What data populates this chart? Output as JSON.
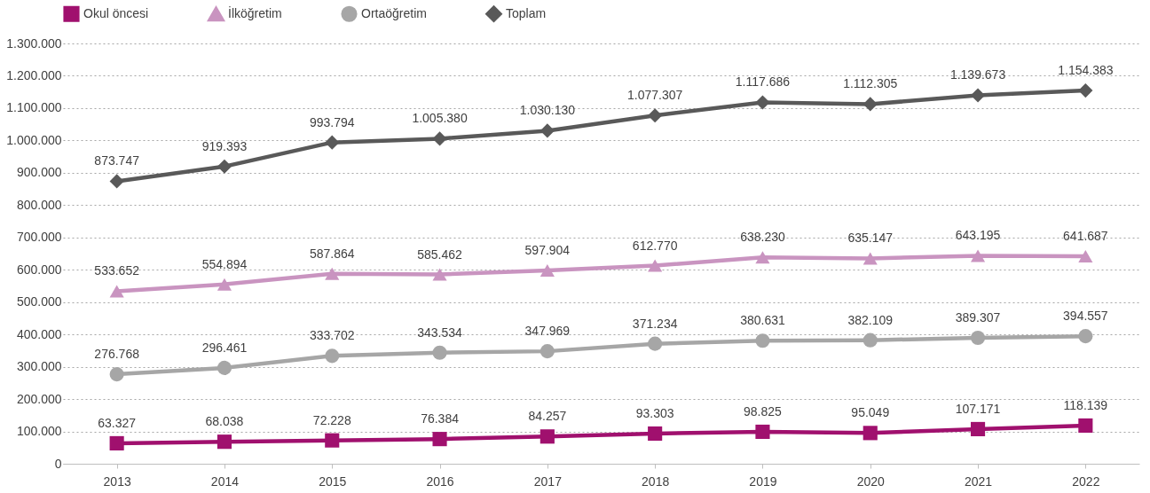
{
  "chart_data": {
    "type": "line",
    "categories": [
      "2013",
      "2014",
      "2015",
      "2016",
      "2017",
      "2018",
      "2019",
      "2020",
      "2021",
      "2022"
    ],
    "series": [
      {
        "name": "Okul öncesi",
        "color": "#a0106e",
        "marker": "square",
        "values": [
          63327,
          68038,
          72228,
          76384,
          84257,
          93303,
          98825,
          95049,
          107171,
          118139
        ],
        "value_labels": [
          "63.327",
          "68.038",
          "72.228",
          "76.384",
          "84.257",
          "93.303",
          "98.825",
          "95.049",
          "107.171",
          "118.139"
        ]
      },
      {
        "name": "İlköğretim",
        "color": "#c994c0",
        "marker": "triangle",
        "values": [
          533652,
          554894,
          587864,
          585462,
          597904,
          612770,
          638230,
          635147,
          643195,
          641687
        ],
        "value_labels": [
          "533.652",
          "554.894",
          "587.864",
          "585.462",
          "597.904",
          "612.770",
          "638.230",
          "635.147",
          "643.195",
          "641.687"
        ]
      },
      {
        "name": "Ortaöğretim",
        "color": "#a6a6a6",
        "marker": "circle",
        "values": [
          276768,
          296461,
          333702,
          343534,
          347969,
          371234,
          380631,
          382109,
          389307,
          394557
        ],
        "value_labels": [
          "276.768",
          "296.461",
          "333.702",
          "343.534",
          "347.969",
          "371.234",
          "380.631",
          "382.109",
          "389.307",
          "394.557"
        ]
      },
      {
        "name": "Toplam",
        "color": "#595959",
        "marker": "diamond",
        "values": [
          873747,
          919393,
          993794,
          1005380,
          1030130,
          1077307,
          1117686,
          1112305,
          1139673,
          1154383
        ],
        "value_labels": [
          "873.747",
          "919.393",
          "993.794",
          "1.005.380",
          "1.030.130",
          "1.077.307",
          "1.117.686",
          "1.112.305",
          "1.139.673",
          "1.154.383"
        ]
      }
    ],
    "ylim": [
      0,
      1300000
    ],
    "yticks": [
      0,
      {
        "value": 100000,
        "label": "100.000"
      },
      {
        "value": 200000,
        "label": "200.000"
      },
      {
        "value": 300000,
        "label": "300.000"
      },
      {
        "value": 400000,
        "label": "400.000"
      },
      {
        "value": 500000,
        "label": "500.000"
      },
      {
        "value": 600000,
        "label": "600.000"
      },
      {
        "value": 700000,
        "label": "700.000"
      },
      {
        "value": 800000,
        "label": "800.000"
      },
      {
        "value": 900000,
        "label": "900.000"
      },
      {
        "value": 1000000,
        "label": "1.000.000"
      },
      {
        "value": 1100000,
        "label": "1.100.000"
      },
      {
        "value": 1200000,
        "label": "1.200.000"
      },
      {
        "value": 1300000,
        "label": "1.300.000"
      }
    ],
    "grid": "y",
    "legend": "top",
    "line_style": "solid"
  }
}
